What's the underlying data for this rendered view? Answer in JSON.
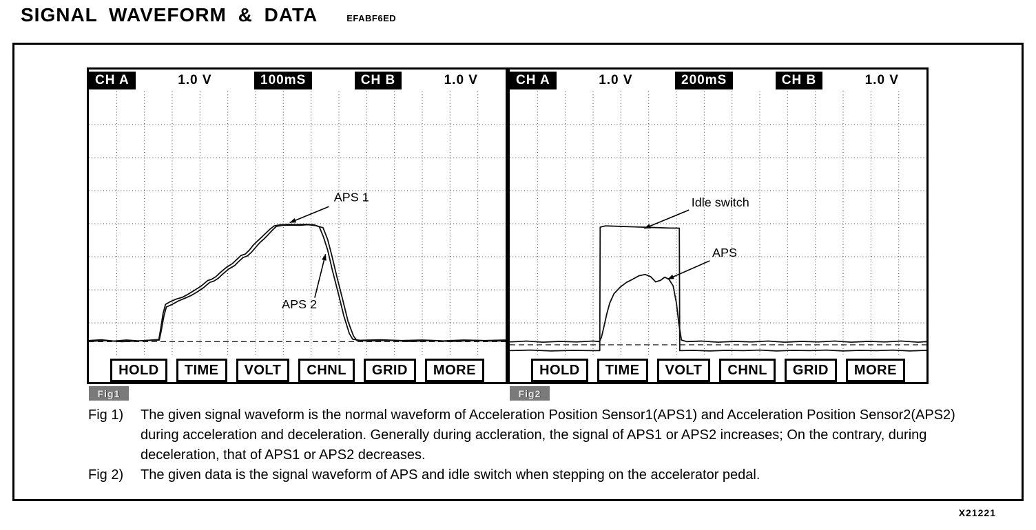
{
  "page": {
    "title": "SIGNAL WAVEFORM & DATA",
    "code": "EFABF6ED",
    "doc_number": "X21221"
  },
  "scopes": [
    {
      "name": "fig1",
      "header": {
        "ch_a_label": "CH A",
        "ch_a_volts": "1.0 V",
        "timebase": "100mS",
        "ch_b_label": "CH B",
        "ch_b_volts": "1.0 V"
      },
      "buttons": [
        "HOLD",
        "TIME",
        "VOLT",
        "CHNL",
        "GRID",
        "MORE"
      ],
      "fig_badge": "Fig1"
    },
    {
      "name": "fig2",
      "header": {
        "ch_a_label": "CH A",
        "ch_a_volts": "1.0 V",
        "timebase": "200mS",
        "ch_b_label": "CH B",
        "ch_b_volts": "1.0 V"
      },
      "buttons": [
        "HOLD",
        "TIME",
        "VOLT",
        "CHNL",
        "GRID",
        "MORE"
      ],
      "fig_badge": "Fig2"
    }
  ],
  "caption": {
    "fig1_label": "Fig 1)",
    "fig1_text": "The given signal waveform is the normal waveform of  Acceleration Position Sensor1(APS1) and Acceleration Position Sensor2(APS2) during acceleration and deceleration. Generally during accleration, the signal of APS1 or APS2 increases; On the contrary, during deceleration, that of APS1 or APS2 decreases.",
    "fig2_label": "Fig 2)",
    "fig2_text": "The given data is the signal waveform of APS and idle switch when stepping on the accelerator pedal."
  },
  "chart_data": [
    {
      "type": "line",
      "title": "APS1 / APS2 normal waveform during acceleration and deceleration",
      "x_units": "time, 100 mS/div",
      "y_units": "voltage, 1.0 V/div",
      "grid_cols": 15,
      "grid_rows": 8,
      "ref_line_y": 94.6,
      "legend_position": "none",
      "series": [
        {
          "name": "APS 1",
          "points": [
            [
              0,
              94.2
            ],
            [
              3,
              93.9
            ],
            [
              6,
              94.4
            ],
            [
              9,
              94.0
            ],
            [
              12,
              94.3
            ],
            [
              15,
              94.0
            ],
            [
              16.8,
              93.8
            ],
            [
              17.2,
              90.0
            ],
            [
              17.8,
              84.0
            ],
            [
              18.4,
              80.5
            ],
            [
              19.5,
              79.5
            ],
            [
              21,
              78.5
            ],
            [
              22.5,
              77.8
            ],
            [
              24,
              76.5
            ],
            [
              25.5,
              75.0
            ],
            [
              27,
              73.5
            ],
            [
              28.5,
              71.5
            ],
            [
              29.5,
              71.0
            ],
            [
              30.5,
              70.0
            ],
            [
              31.5,
              68.5
            ],
            [
              33,
              66.5
            ],
            [
              34.5,
              65.0
            ],
            [
              35.5,
              63.5
            ],
            [
              36.5,
              62.0
            ],
            [
              37.5,
              61.5
            ],
            [
              38.5,
              60.0
            ],
            [
              39.5,
              58.0
            ],
            [
              40.5,
              56.5
            ],
            [
              41.5,
              55.0
            ],
            [
              42.5,
              53.5
            ],
            [
              43.5,
              52.0
            ],
            [
              44.5,
              50.8
            ],
            [
              46,
              50.4
            ],
            [
              48,
              50.2
            ],
            [
              50,
              50.3
            ],
            [
              52,
              50.2
            ],
            [
              54,
              50.4
            ],
            [
              55.3,
              51.2
            ],
            [
              56.3,
              55.0
            ],
            [
              57.3,
              60.0
            ],
            [
              58.5,
              68.0
            ],
            [
              59.8,
              76.0
            ],
            [
              61.2,
              85.0
            ],
            [
              62.5,
              91.5
            ],
            [
              63.3,
              93.7
            ],
            [
              65,
              94.1
            ],
            [
              70,
              93.9
            ],
            [
              75,
              94.2
            ],
            [
              80,
              94.0
            ],
            [
              85,
              94.3
            ],
            [
              90,
              94.0
            ],
            [
              95,
              94.2
            ],
            [
              100,
              94.0
            ]
          ]
        },
        {
          "name": "APS 2",
          "points": [
            [
              0,
              94.5
            ],
            [
              4,
              94.2
            ],
            [
              8,
              94.6
            ],
            [
              12,
              94.3
            ],
            [
              15,
              94.1
            ],
            [
              16.9,
              94.0
            ],
            [
              17.3,
              91.0
            ],
            [
              18.0,
              85.0
            ],
            [
              18.6,
              81.5
            ],
            [
              20,
              80.5
            ],
            [
              21.5,
              79.2
            ],
            [
              23,
              78.2
            ],
            [
              24.5,
              77.2
            ],
            [
              26,
              75.8
            ],
            [
              27.5,
              74.2
            ],
            [
              29,
              72.2
            ],
            [
              30,
              71.7
            ],
            [
              31,
              70.7
            ],
            [
              32,
              69.2
            ],
            [
              33.5,
              67.2
            ],
            [
              35,
              65.8
            ],
            [
              36,
              64.2
            ],
            [
              37,
              62.8
            ],
            [
              38,
              62.2
            ],
            [
              39,
              60.8
            ],
            [
              40,
              59.0
            ],
            [
              41,
              57.2
            ],
            [
              42,
              55.8
            ],
            [
              43,
              54.2
            ],
            [
              44,
              52.5
            ],
            [
              45,
              51.0
            ],
            [
              46.5,
              50.6
            ],
            [
              48.5,
              50.5
            ],
            [
              50.5,
              50.6
            ],
            [
              52.5,
              50.4
            ],
            [
              54.5,
              50.7
            ],
            [
              56.2,
              51.5
            ],
            [
              57.3,
              56.0
            ],
            [
              58.3,
              62.0
            ],
            [
              59.5,
              70.0
            ],
            [
              60.8,
              78.0
            ],
            [
              62.2,
              87.0
            ],
            [
              63.5,
              92.5
            ],
            [
              64.3,
              94.1
            ],
            [
              67,
              94.4
            ],
            [
              72,
              94.1
            ],
            [
              77,
              94.5
            ],
            [
              82,
              94.2
            ],
            [
              87,
              94.5
            ],
            [
              92,
              94.2
            ],
            [
              97,
              94.4
            ],
            [
              100,
              94.3
            ]
          ]
        }
      ],
      "annotations": [
        {
          "label": "APS 1",
          "label_x": 58.8,
          "label_y": 41.5,
          "arrow": [
            [
              57.6,
              43.5
            ],
            [
              48.2,
              49.6
            ]
          ]
        },
        {
          "label": "APS 2",
          "label_x": 46.3,
          "label_y": 82.0,
          "arrow": [
            [
              54.2,
              78.0
            ],
            [
              56.8,
              61.5
            ]
          ]
        }
      ]
    },
    {
      "type": "line",
      "title": "APS and idle switch waveform when stepping on the accelerator pedal",
      "x_units": "time, 200 mS/div",
      "y_units": "voltage, 1.0 V/div",
      "grid_cols": 15,
      "grid_rows": 8,
      "ref_line_y": 95.8,
      "legend_position": "none",
      "series": [
        {
          "name": "APS",
          "points": [
            [
              0,
              94.7
            ],
            [
              4,
              94.4
            ],
            [
              8,
              94.8
            ],
            [
              12,
              94.5
            ],
            [
              16,
              94.7
            ],
            [
              20,
              94.4
            ],
            [
              21.5,
              94.6
            ],
            [
              22,
              93.0
            ],
            [
              22.6,
              89.0
            ],
            [
              23.3,
              84.0
            ],
            [
              24,
              80.0
            ],
            [
              25,
              76.5
            ],
            [
              26.5,
              74.0
            ],
            [
              28,
              72.2
            ],
            [
              29.5,
              71.0
            ],
            [
              31,
              69.7
            ],
            [
              32.5,
              69.2
            ],
            [
              33.8,
              70.0
            ],
            [
              35,
              72.0
            ],
            [
              36.2,
              71.4
            ],
            [
              37.2,
              70.2
            ],
            [
              38.2,
              71.0
            ],
            [
              39.2,
              73.5
            ],
            [
              40,
              80.0
            ],
            [
              40.6,
              88.0
            ],
            [
              41.2,
              94.0
            ],
            [
              42.5,
              94.6
            ],
            [
              46,
              94.4
            ],
            [
              50,
              94.8
            ],
            [
              54,
              94.5
            ],
            [
              58,
              94.7
            ],
            [
              62,
              94.4
            ],
            [
              66,
              94.8
            ],
            [
              70,
              94.5
            ],
            [
              74,
              94.7
            ],
            [
              78,
              94.4
            ],
            [
              82,
              94.8
            ],
            [
              86,
              94.5
            ],
            [
              90,
              94.7
            ],
            [
              94,
              94.4
            ],
            [
              98,
              94.8
            ],
            [
              100,
              94.6
            ]
          ]
        },
        {
          "name": "Idle switch",
          "points": [
            [
              0,
              98.0
            ],
            [
              5,
              97.8
            ],
            [
              10,
              98.1
            ],
            [
              15,
              97.9
            ],
            [
              20,
              98.0
            ],
            [
              21.6,
              98.0
            ],
            [
              21.7,
              51.3
            ],
            [
              23,
              50.8
            ],
            [
              26,
              51.0
            ],
            [
              30,
              51.2
            ],
            [
              34,
              51.4
            ],
            [
              38,
              51.6
            ],
            [
              40.7,
              51.7
            ],
            [
              40.8,
              98.0
            ],
            [
              44,
              97.9
            ],
            [
              48,
              98.1
            ],
            [
              52,
              97.9
            ],
            [
              56,
              98.0
            ],
            [
              60,
              97.8
            ],
            [
              64,
              98.1
            ],
            [
              68,
              97.9
            ],
            [
              72,
              98.0
            ],
            [
              76,
              97.8
            ],
            [
              80,
              98.1
            ],
            [
              84,
              97.9
            ],
            [
              88,
              98.0
            ],
            [
              92,
              97.8
            ],
            [
              96,
              98.1
            ],
            [
              100,
              97.9
            ]
          ]
        }
      ],
      "annotations": [
        {
          "label": "Idle switch",
          "label_x": 43.6,
          "label_y": 43.5,
          "arrow": [
            [
              43.0,
              44.8
            ],
            [
              32.3,
              51.8
            ]
          ]
        },
        {
          "label": "APS",
          "label_x": 48.6,
          "label_y": 62.5,
          "arrow": [
            [
              48.0,
              64.0
            ],
            [
              37.9,
              71.0
            ]
          ]
        }
      ]
    }
  ]
}
